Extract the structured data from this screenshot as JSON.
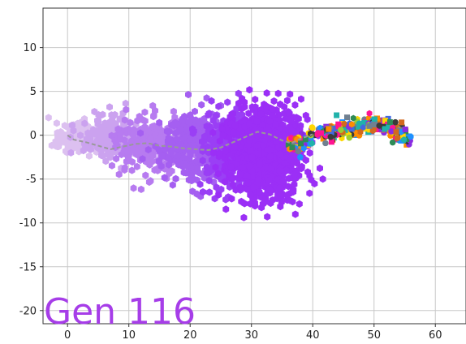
{
  "chart_data": {
    "type": "scatter",
    "title": "",
    "xlabel": "",
    "ylabel": "",
    "xlim": [
      -4,
      65
    ],
    "ylim": [
      -21.5,
      14.5
    ],
    "x_ticks": [
      "0",
      "10",
      "20",
      "30",
      "40",
      "50",
      "60"
    ],
    "x_tick_values": [
      0,
      10,
      20,
      30,
      40,
      50,
      60
    ],
    "y_ticks": [
      "10",
      "5",
      "0",
      "-5",
      "-10",
      "-15",
      "-20"
    ],
    "y_tick_values": [
      10,
      5,
      0,
      -5,
      -10,
      -15,
      -20
    ],
    "grid": true,
    "annotation": "Gen 116",
    "colors": {
      "annotation": "#a63de8",
      "trail": [
        "#dcc0f0",
        "#cba2ef",
        "#b77bf0",
        "#a55ff1",
        "#9a3ff5"
      ],
      "main_cloud": "#9b2ff6",
      "path_line": "#999999",
      "front_cluster": [
        "#2e8b57",
        "#ff8c00",
        "#1e90ff",
        "#ff1493",
        "#3a3a3a",
        "#9acd32",
        "#8a2be2",
        "#d2691e",
        "#20b2aa",
        "#ffd700",
        "#708090",
        "#4169e1"
      ]
    },
    "clouds": [
      {
        "name": "trail-1",
        "cx": 1.5,
        "cy": 0.0,
        "sx": 2.2,
        "sy": 1.0,
        "n": 140,
        "color_index": 0
      },
      {
        "name": "trail-2",
        "cx": 7.5,
        "cy": -0.3,
        "sx": 3.0,
        "sy": 1.4,
        "n": 220,
        "color_index": 1
      },
      {
        "name": "trail-3",
        "cx": 14.0,
        "cy": -1.0,
        "sx": 3.6,
        "sy": 1.9,
        "n": 280,
        "color_index": 2
      },
      {
        "name": "trail-4",
        "cx": 20.5,
        "cy": -1.3,
        "sx": 3.2,
        "sy": 2.2,
        "n": 320,
        "color_index": 3
      },
      {
        "name": "trail-5",
        "cx": 26.0,
        "cy": -2.0,
        "sx": 2.4,
        "sy": 2.6,
        "n": 260,
        "color_index": 4
      },
      {
        "name": "main-cloud",
        "cx": 32.0,
        "cy": -2.2,
        "sx": 3.6,
        "sy": 2.9,
        "n": 1100,
        "color_index": -1
      }
    ],
    "front_cluster": {
      "x_range": [
        36,
        56
      ],
      "n": 260
    },
    "front_curve": [
      [
        36,
        -1.2
      ],
      [
        38,
        -0.8
      ],
      [
        40,
        -0.2
      ],
      [
        42,
        0.3
      ],
      [
        44,
        0.4
      ],
      [
        46,
        1.0
      ],
      [
        48,
        1.2
      ],
      [
        50,
        1.4
      ],
      [
        52,
        1.2
      ],
      [
        54,
        0.2
      ],
      [
        56,
        -0.4
      ]
    ],
    "path_line": [
      [
        0,
        0
      ],
      [
        1,
        -0.5
      ],
      [
        3,
        -0.8
      ],
      [
        5,
        -1.2
      ],
      [
        7,
        -1.6
      ],
      [
        9,
        -1.3
      ],
      [
        11,
        -1.0
      ],
      [
        13,
        -0.9
      ],
      [
        15,
        -1.2
      ],
      [
        17,
        -1.3
      ],
      [
        19,
        -1.5
      ],
      [
        21,
        -1.6
      ],
      [
        23,
        -1.7
      ],
      [
        25,
        -1.4
      ],
      [
        27,
        -0.8
      ],
      [
        29,
        -0.2
      ],
      [
        31,
        0.4
      ],
      [
        33,
        0.1
      ],
      [
        35,
        -0.6
      ],
      [
        36.5,
        -0.9
      ],
      [
        38,
        -0.4
      ],
      [
        40,
        0.1
      ]
    ]
  }
}
